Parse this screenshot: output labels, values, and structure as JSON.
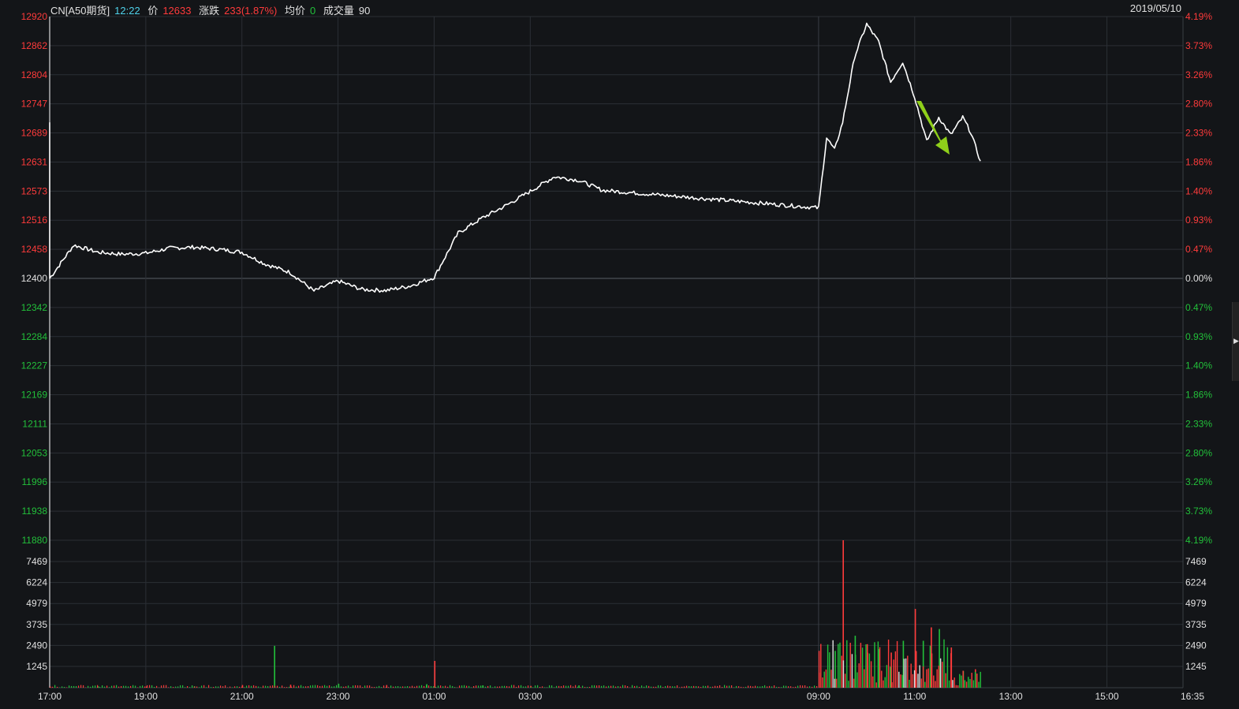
{
  "header": {
    "symbol": "CN[A50期货]",
    "time": "12:22",
    "price_label": "价",
    "price": "12633",
    "change_label": "涨跌",
    "change": "233(1.87%)",
    "avg_label": "均价",
    "avg": "0",
    "volume_label": "成交量",
    "volume": "90",
    "date": "2019/05/10"
  },
  "colors": {
    "background": "#131518",
    "grid": "#2b2f35",
    "price_line": "#ffffff",
    "up": "#ff3b3b",
    "down": "#22c03a",
    "arrow": "#8fcf1a"
  },
  "chart_data": [
    {
      "type": "line",
      "series": [
        {
          "x": [
            "17:00",
            "17:30",
            "18:00",
            "18:30",
            "19:00",
            "19:30",
            "20:00",
            "20:30",
            "21:00",
            "21:30",
            "22:00",
            "22:30",
            "23:00",
            "23:30",
            "00:00",
            "00:30",
            "01:00",
            "01:30",
            "02:00",
            "02:30",
            "03:00",
            "03:30",
            "04:00",
            "04:30",
            "09:00",
            "09:10",
            "09:20",
            "09:30",
            "09:45",
            "10:00",
            "10:15",
            "10:30",
            "10:45",
            "11:00",
            "11:15",
            "11:30",
            "11:45",
            "12:00",
            "12:10",
            "12:22"
          ],
          "values": [
            12400,
            12466,
            12452,
            12448,
            12450,
            12460,
            12462,
            12458,
            12452,
            12428,
            12412,
            12375,
            12395,
            12378,
            12376,
            12385,
            12402,
            12490,
            12520,
            12545,
            12573,
            12602,
            12595,
            12575,
            12540,
            12680,
            12655,
            12710,
            12840,
            12905,
            12870,
            12790,
            12830,
            12760,
            12672,
            12720,
            12685,
            12720,
            12690,
            12633
          ]
        }
      ],
      "ylim": [
        11880,
        12920
      ],
      "yticks_left": [
        "12920",
        "12862",
        "12804",
        "12747",
        "12689",
        "12631",
        "12573",
        "12516",
        "12458",
        "12400",
        "12342",
        "12284",
        "12227",
        "12169",
        "12111",
        "12053",
        "11996",
        "11938",
        "11880"
      ],
      "yticks_right": [
        "4.19%",
        "3.73%",
        "3.26%",
        "2.80%",
        "2.33%",
        "1.86%",
        "1.40%",
        "0.93%",
        "0.47%",
        "0.00%",
        "0.47%",
        "0.93%",
        "1.40%",
        "1.86%",
        "2.33%",
        "2.80%",
        "3.26%",
        "3.73%",
        "4.19%"
      ],
      "grid": true
    },
    {
      "type": "bar",
      "categories": [
        "17:00",
        "18:00",
        "19:00",
        "20:00",
        "21:00",
        "21:40",
        "22:00",
        "23:00",
        "00:00",
        "00:50",
        "01:00",
        "02:00",
        "03:00",
        "04:00",
        "09:00",
        "09:20",
        "09:30",
        "09:45",
        "10:00",
        "10:15",
        "10:30",
        "10:45",
        "11:00",
        "11:10",
        "11:20",
        "11:30",
        "11:45",
        "12:00",
        "12:15"
      ],
      "values": [
        60,
        80,
        70,
        90,
        160,
        2500,
        180,
        240,
        160,
        210,
        1600,
        140,
        110,
        140,
        900,
        2200,
        8800,
        3100,
        2600,
        2300,
        2100,
        2800,
        4700,
        2800,
        3600,
        3500,
        2400,
        1000,
        1100
      ],
      "ylim": [
        0,
        8800
      ],
      "yticks": [
        "7469",
        "6224",
        "4979",
        "3735",
        "2490",
        "1245"
      ],
      "xticks": [
        "17:00",
        "19:00",
        "21:00",
        "23:00",
        "01:00",
        "03:00",
        "09:00",
        "11:00",
        "13:00",
        "15:00",
        "16:35"
      ]
    }
  ]
}
